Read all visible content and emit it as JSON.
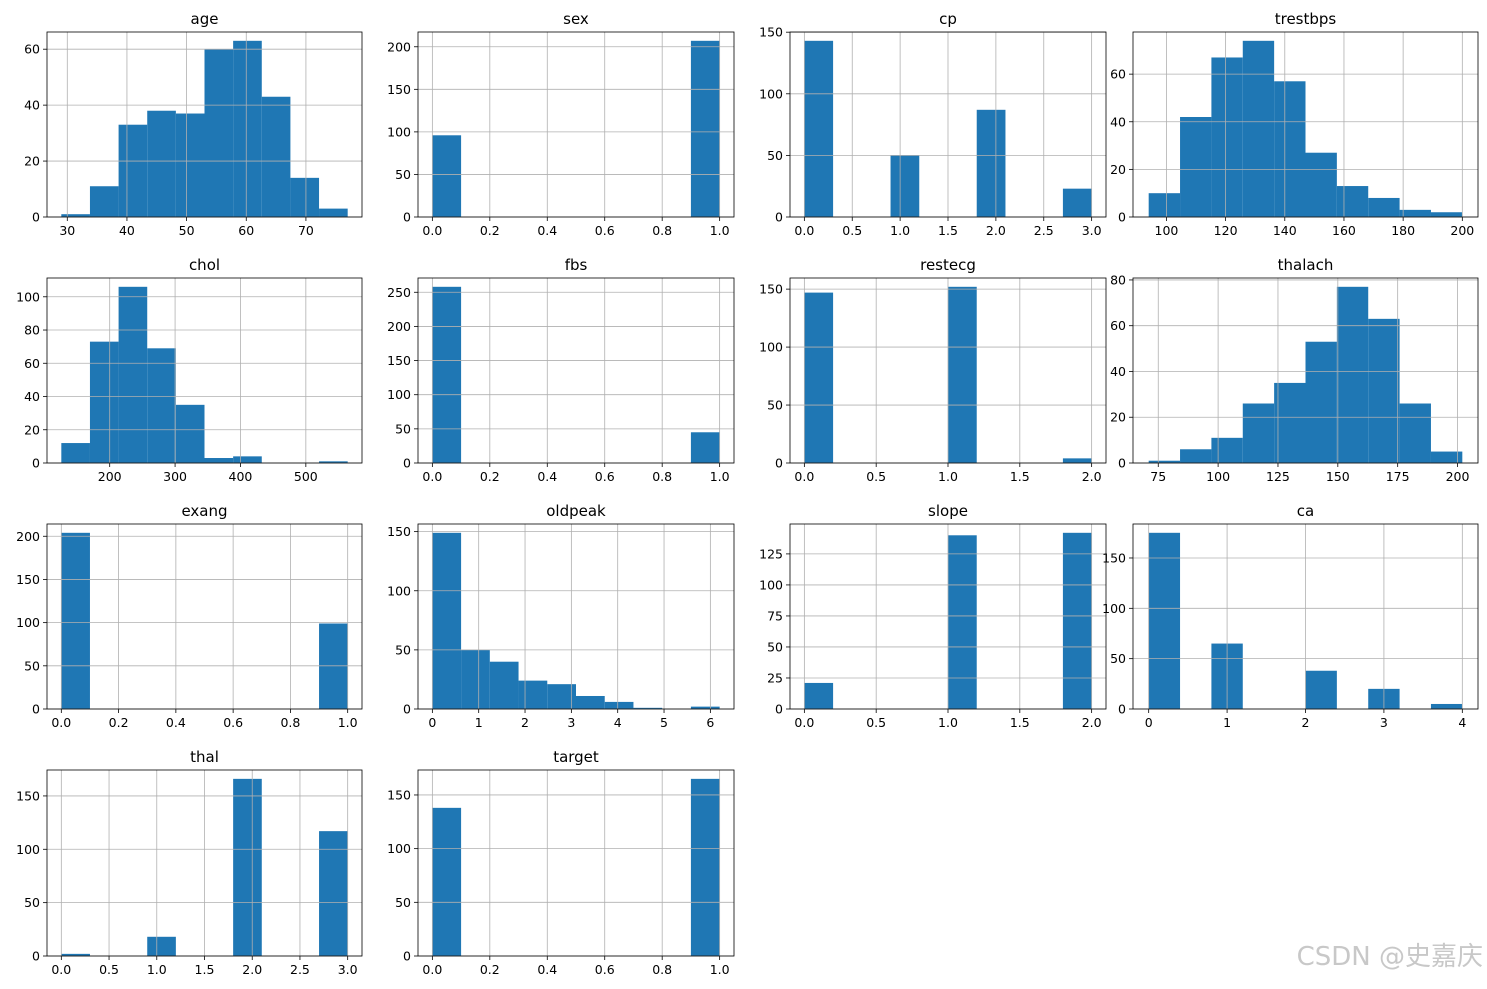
{
  "chart_data": [
    {
      "type": "histogram",
      "title": "age",
      "bins": [
        29,
        33.8,
        38.6,
        43.4,
        48.2,
        53,
        57.8,
        62.6,
        67.4,
        72.2,
        77
      ],
      "values": [
        1,
        11,
        33,
        38,
        37,
        60,
        63,
        43,
        14,
        3
      ],
      "xlim": [
        26.6,
        79.4
      ],
      "xticks": [
        30,
        40,
        50,
        60,
        70
      ],
      "ylim": [
        0,
        66.15
      ],
      "yticks": [
        0,
        20,
        40,
        60
      ],
      "grid": true,
      "color": "#1f77b4"
    },
    {
      "type": "histogram",
      "title": "sex",
      "bins": [
        0,
        0.1,
        0.2,
        0.3,
        0.4,
        0.5,
        0.6,
        0.7,
        0.8,
        0.9,
        1
      ],
      "values": [
        96,
        0,
        0,
        0,
        0,
        0,
        0,
        0,
        0,
        207
      ],
      "xlim": [
        -0.05,
        1.05
      ],
      "xticks": [
        {
          "value": 0,
          "label": "0.0"
        },
        0.2,
        0.4,
        0.6,
        0.8,
        {
          "value": 1,
          "label": "1.0"
        }
      ],
      "ylim": [
        0,
        217.35
      ],
      "yticks": [
        0,
        50,
        100,
        150,
        200
      ],
      "grid": true,
      "color": "#1f77b4"
    },
    {
      "type": "histogram",
      "title": "cp",
      "bins": [
        0,
        0.3,
        0.6,
        0.9,
        1.2,
        1.5,
        1.8,
        2.1,
        2.4,
        2.7,
        3
      ],
      "values": [
        143,
        0,
        0,
        50,
        0,
        0,
        87,
        0,
        0,
        23
      ],
      "xlim": [
        -0.15,
        3.15
      ],
      "xticks": [
        {
          "value": 0,
          "label": "0.0"
        },
        0.5,
        {
          "value": 1,
          "label": "1.0"
        },
        1.5,
        {
          "value": 2,
          "label": "2.0"
        },
        2.5,
        {
          "value": 3,
          "label": "3.0"
        }
      ],
      "ylim": [
        0,
        150.15
      ],
      "yticks": [
        0,
        50,
        100,
        150
      ],
      "grid": true,
      "color": "#1f77b4"
    },
    {
      "type": "histogram",
      "title": "trestbps",
      "bins": [
        94,
        104.6,
        115.2,
        125.8,
        136.4,
        147,
        157.6,
        168.2,
        178.8,
        189.4,
        200
      ],
      "values": [
        10,
        42,
        67,
        74,
        57,
        27,
        13,
        8,
        3,
        2
      ],
      "xlim": [
        88.7,
        205.3
      ],
      "xticks": [
        100,
        120,
        140,
        160,
        180,
        200
      ],
      "ylim": [
        0,
        77.7
      ],
      "yticks": [
        0,
        20,
        40,
        60
      ],
      "grid": true,
      "color": "#1f77b4"
    },
    {
      "type": "histogram",
      "title": "chol",
      "bins": [
        126,
        169.8,
        213.6,
        257.4,
        301.2,
        345,
        388.8,
        432.6,
        476.4,
        520.2,
        564
      ],
      "values": [
        12,
        73,
        106,
        69,
        35,
        3,
        4,
        0,
        0,
        1
      ],
      "xlim": [
        104.1,
        585.9
      ],
      "xticks": [
        200,
        300,
        400,
        500
      ],
      "ylim": [
        0,
        111.3
      ],
      "yticks": [
        0,
        20,
        40,
        60,
        80,
        100
      ],
      "grid": true,
      "color": "#1f77b4"
    },
    {
      "type": "histogram",
      "title": "fbs",
      "bins": [
        0,
        0.1,
        0.2,
        0.3,
        0.4,
        0.5,
        0.6,
        0.7,
        0.8,
        0.9,
        1
      ],
      "values": [
        258,
        0,
        0,
        0,
        0,
        0,
        0,
        0,
        0,
        45
      ],
      "xlim": [
        -0.05,
        1.05
      ],
      "xticks": [
        {
          "value": 0,
          "label": "0.0"
        },
        0.2,
        0.4,
        0.6,
        0.8,
        {
          "value": 1,
          "label": "1.0"
        }
      ],
      "ylim": [
        0,
        270.9
      ],
      "yticks": [
        0,
        50,
        100,
        150,
        200,
        250
      ],
      "grid": true,
      "color": "#1f77b4"
    },
    {
      "type": "histogram",
      "title": "restecg",
      "bins": [
        0,
        0.2,
        0.4,
        0.6,
        0.8,
        1,
        1.2,
        1.4,
        1.6,
        1.8,
        2
      ],
      "values": [
        147,
        0,
        0,
        0,
        0,
        152,
        0,
        0,
        0,
        4
      ],
      "xlim": [
        -0.1,
        2.1
      ],
      "xticks": [
        {
          "value": 0,
          "label": "0.0"
        },
        0.5,
        {
          "value": 1,
          "label": "1.0"
        },
        1.5,
        {
          "value": 2,
          "label": "2.0"
        }
      ],
      "ylim": [
        0,
        159.6
      ],
      "yticks": [
        0,
        50,
        100,
        150
      ],
      "grid": true,
      "color": "#1f77b4"
    },
    {
      "type": "histogram",
      "title": "thalach",
      "bins": [
        71,
        84.1,
        97.2,
        110.3,
        123.4,
        136.5,
        149.6,
        162.7,
        175.8,
        188.9,
        202
      ],
      "values": [
        1,
        6,
        11,
        26,
        35,
        53,
        77,
        63,
        26,
        5
      ],
      "xlim": [
        64.45,
        208.55
      ],
      "xticks": [
        75,
        100,
        125,
        150,
        175,
        200
      ],
      "ylim": [
        0,
        80.85
      ],
      "yticks": [
        0,
        20,
        40,
        60,
        80
      ],
      "grid": true,
      "color": "#1f77b4"
    },
    {
      "type": "histogram",
      "title": "exang",
      "bins": [
        0,
        0.1,
        0.2,
        0.3,
        0.4,
        0.5,
        0.6,
        0.7,
        0.8,
        0.9,
        1
      ],
      "values": [
        204,
        0,
        0,
        0,
        0,
        0,
        0,
        0,
        0,
        99
      ],
      "xlim": [
        -0.05,
        1.05
      ],
      "xticks": [
        {
          "value": 0,
          "label": "0.0"
        },
        0.2,
        0.4,
        0.6,
        0.8,
        {
          "value": 1,
          "label": "1.0"
        }
      ],
      "ylim": [
        0,
        214.2
      ],
      "yticks": [
        0,
        50,
        100,
        150,
        200
      ],
      "grid": true,
      "color": "#1f77b4"
    },
    {
      "type": "histogram",
      "title": "oldpeak",
      "bins": [
        0,
        0.62,
        1.24,
        1.86,
        2.48,
        3.1,
        3.72,
        4.34,
        4.96,
        5.58,
        6.2
      ],
      "values": [
        149,
        50,
        40,
        24,
        21,
        11,
        6,
        1,
        0,
        2
      ],
      "xlim": [
        -0.31,
        6.51
      ],
      "xticks": [
        0,
        1,
        2,
        3,
        4,
        5,
        6
      ],
      "ylim": [
        0,
        156.45
      ],
      "yticks": [
        0,
        50,
        100,
        150
      ],
      "grid": true,
      "color": "#1f77b4"
    },
    {
      "type": "histogram",
      "title": "slope",
      "bins": [
        0,
        0.2,
        0.4,
        0.6,
        0.8,
        1,
        1.2,
        1.4,
        1.6,
        1.8,
        2
      ],
      "values": [
        21,
        0,
        0,
        0,
        0,
        140,
        0,
        0,
        0,
        142
      ],
      "xlim": [
        -0.1,
        2.1
      ],
      "xticks": [
        {
          "value": 0,
          "label": "0.0"
        },
        0.5,
        {
          "value": 1,
          "label": "1.0"
        },
        1.5,
        {
          "value": 2,
          "label": "2.0"
        }
      ],
      "ylim": [
        0,
        149.1
      ],
      "yticks": [
        0,
        25,
        50,
        75,
        100,
        125
      ],
      "grid": true,
      "color": "#1f77b4"
    },
    {
      "type": "histogram",
      "title": "ca",
      "bins": [
        0,
        0.4,
        0.8,
        1.2,
        1.6,
        2,
        2.4,
        2.8,
        3.2,
        3.6,
        4
      ],
      "values": [
        175,
        0,
        65,
        0,
        0,
        38,
        0,
        20,
        0,
        5
      ],
      "xlim": [
        -0.2,
        4.2
      ],
      "xticks": [
        0,
        1,
        2,
        3,
        4
      ],
      "ylim": [
        0,
        183.75
      ],
      "yticks": [
        0,
        50,
        100,
        150
      ],
      "grid": true,
      "color": "#1f77b4"
    },
    {
      "type": "histogram",
      "title": "thal",
      "bins": [
        0,
        0.3,
        0.6,
        0.9,
        1.2,
        1.5,
        1.8,
        2.1,
        2.4,
        2.7,
        3
      ],
      "values": [
        2,
        0,
        0,
        18,
        0,
        0,
        166,
        0,
        0,
        117
      ],
      "xlim": [
        -0.15,
        3.15
      ],
      "xticks": [
        {
          "value": 0,
          "label": "0.0"
        },
        0.5,
        {
          "value": 1,
          "label": "1.0"
        },
        1.5,
        {
          "value": 2,
          "label": "2.0"
        },
        2.5,
        {
          "value": 3,
          "label": "3.0"
        }
      ],
      "ylim": [
        0,
        174.3
      ],
      "yticks": [
        0,
        50,
        100,
        150
      ],
      "grid": true,
      "color": "#1f77b4"
    },
    {
      "type": "histogram",
      "title": "target",
      "bins": [
        0,
        0.1,
        0.2,
        0.3,
        0.4,
        0.5,
        0.6,
        0.7,
        0.8,
        0.9,
        1
      ],
      "values": [
        138,
        0,
        0,
        0,
        0,
        0,
        0,
        0,
        0,
        165
      ],
      "xlim": [
        -0.05,
        1.05
      ],
      "xticks": [
        {
          "value": 0,
          "label": "0.0"
        },
        0.2,
        0.4,
        0.6,
        0.8,
        {
          "value": 1,
          "label": "1.0"
        }
      ],
      "ylim": [
        0,
        173.25
      ],
      "yticks": [
        0,
        50,
        100,
        150
      ],
      "grid": true,
      "color": "#1f77b4"
    }
  ],
  "watermark": "CSDN @史嘉庆"
}
